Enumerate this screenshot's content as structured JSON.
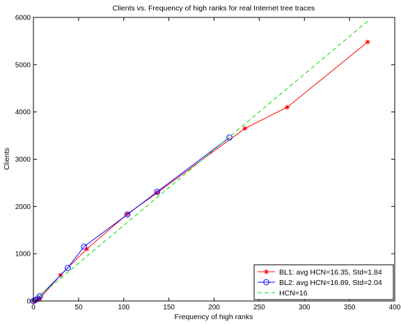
{
  "chart_data": {
    "type": "line",
    "title": "Clients vs. Frequency of high ranks for real Internet tree traces",
    "xlabel": "Frequency of high ranks",
    "ylabel": "Clients",
    "xlim": [
      0,
      400
    ],
    "ylim": [
      0,
      6000
    ],
    "xticks": [
      0,
      50,
      100,
      150,
      200,
      250,
      300,
      350,
      400
    ],
    "yticks": [
      0,
      1000,
      2000,
      3000,
      4000,
      5000,
      6000
    ],
    "grid": false,
    "legend_position": "bottom-right",
    "series": [
      {
        "name": "BL1: avg HCN=16.35, Std=1.84",
        "color": "#ff0000",
        "marker": "star",
        "line_style": "solid",
        "x": [
          0,
          2,
          5,
          7,
          30,
          59,
          104,
          137,
          234,
          281,
          370
        ],
        "y": [
          0,
          15,
          30,
          50,
          550,
          1100,
          1840,
          2290,
          3650,
          4100,
          5480
        ]
      },
      {
        "name": "BL2: avg HCN=16.89, Std=2.04",
        "color": "#0000ff",
        "marker": "circle",
        "line_style": "solid",
        "x": [
          0,
          2,
          5,
          7,
          38,
          56,
          104,
          137,
          217
        ],
        "y": [
          0,
          20,
          50,
          100,
          700,
          1150,
          1830,
          2310,
          3460
        ]
      },
      {
        "name": "HCN=16",
        "color": "#00dd00",
        "marker": "none",
        "line_style": "dashed",
        "x": [
          0,
          370
        ],
        "y": [
          0,
          5920
        ]
      }
    ]
  }
}
